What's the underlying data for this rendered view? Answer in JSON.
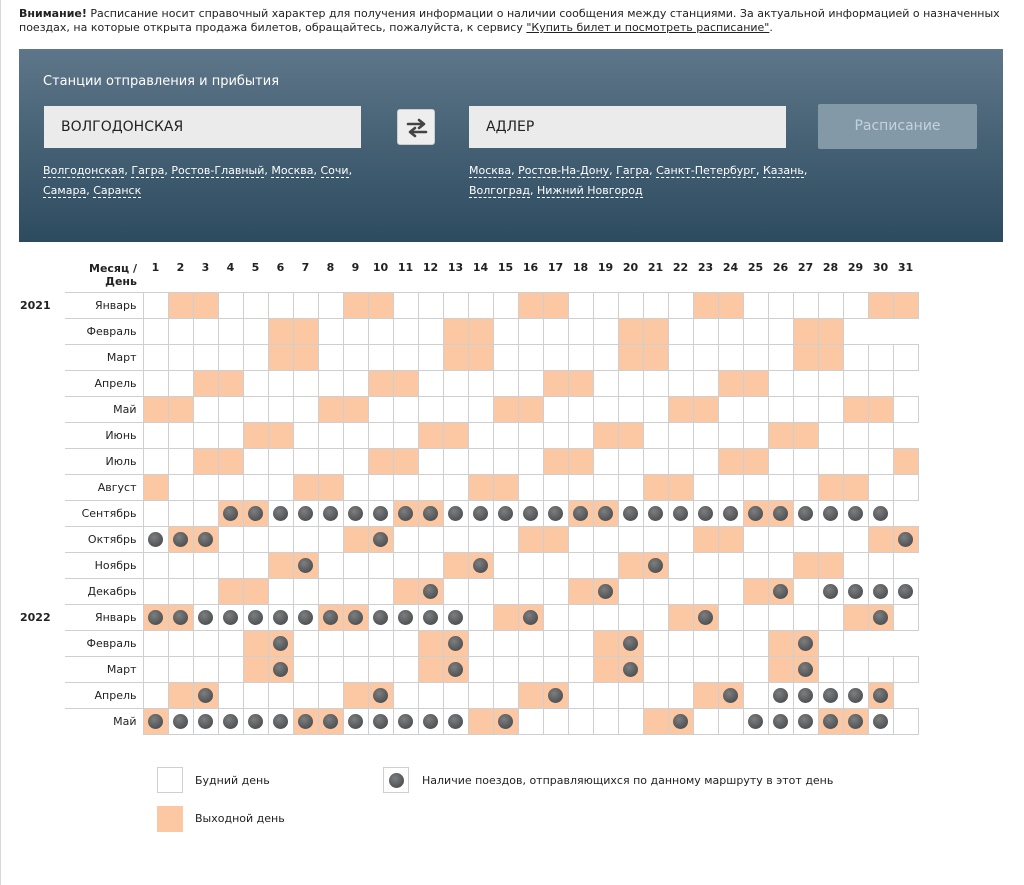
{
  "notice": {
    "bold": "Внимание!",
    "text": " Расписание носит справочный характер для получения информации о наличии сообщения между станциями. За актуальной информацией о назначенных поездах, на которые открыта продажа билетов, обращайтесь, пожалуйста, к сервису ",
    "link": "\"Купить билет и посмотреть расписание\"",
    "end": "."
  },
  "form": {
    "title": "Станции отправления и прибытия",
    "from_value": "ВОЛГОДОНСКАЯ",
    "to_value": "АДЛЕР",
    "swap_icon": "swap-arrows-icon",
    "submit_label": "Расписание",
    "from_suggestions": [
      "Волгодонская",
      "Гагра",
      "Ростов-Главный",
      "Москва",
      "Сочи",
      "Самара",
      "Саранск"
    ],
    "to_suggestions": [
      "Москва",
      "Ростов-На-Дону",
      "Гагра",
      "Санкт-Петербург",
      "Казань",
      "Волгоград",
      "Нижний Новгород"
    ]
  },
  "calendar": {
    "header_label": "Месяц / День",
    "months": [
      {
        "year": "2021",
        "name": "Январь",
        "days": 31,
        "weekend": [
          2,
          3,
          9,
          10,
          16,
          17,
          23,
          24,
          30,
          31
        ],
        "trains": []
      },
      {
        "year": "",
        "name": "Февраль",
        "days": 28,
        "weekend": [
          6,
          7,
          13,
          14,
          20,
          21,
          27,
          28
        ],
        "trains": []
      },
      {
        "year": "",
        "name": "Март",
        "days": 31,
        "weekend": [
          6,
          7,
          13,
          14,
          20,
          21,
          27,
          28
        ],
        "trains": []
      },
      {
        "year": "",
        "name": "Апрель",
        "days": 30,
        "weekend": [
          3,
          4,
          10,
          11,
          17,
          18,
          24,
          25
        ],
        "trains": []
      },
      {
        "year": "",
        "name": "Май",
        "days": 31,
        "weekend": [
          1,
          2,
          8,
          9,
          15,
          16,
          22,
          23,
          29,
          30
        ],
        "trains": []
      },
      {
        "year": "",
        "name": "Июнь",
        "days": 30,
        "weekend": [
          5,
          6,
          12,
          13,
          19,
          20,
          26,
          27
        ],
        "trains": []
      },
      {
        "year": "",
        "name": "Июль",
        "days": 31,
        "weekend": [
          3,
          4,
          10,
          11,
          17,
          18,
          24,
          25,
          31
        ],
        "trains": []
      },
      {
        "year": "",
        "name": "Август",
        "days": 31,
        "weekend": [
          1,
          7,
          8,
          14,
          15,
          21,
          22,
          28,
          29
        ],
        "trains": []
      },
      {
        "year": "",
        "name": "Сентябрь",
        "days": 30,
        "weekend": [
          4,
          5,
          11,
          12,
          18,
          19,
          25,
          26
        ],
        "trains": [
          4,
          5,
          6,
          7,
          8,
          9,
          10,
          11,
          12,
          13,
          14,
          15,
          16,
          17,
          18,
          19,
          20,
          21,
          22,
          23,
          24,
          25,
          26,
          27,
          28,
          29,
          30
        ]
      },
      {
        "year": "",
        "name": "Октябрь",
        "days": 31,
        "weekend": [
          2,
          3,
          9,
          10,
          16,
          17,
          23,
          24,
          30,
          31
        ],
        "trains": [
          1,
          2,
          3,
          10,
          31
        ]
      },
      {
        "year": "",
        "name": "Ноябрь",
        "days": 30,
        "weekend": [
          6,
          7,
          13,
          14,
          20,
          21,
          27,
          28
        ],
        "trains": [
          7,
          14,
          21
        ]
      },
      {
        "year": "",
        "name": "Декабрь",
        "days": 31,
        "weekend": [
          4,
          5,
          11,
          12,
          18,
          19,
          25,
          26
        ],
        "trains": [
          12,
          19,
          26,
          28,
          29,
          30,
          31
        ]
      },
      {
        "year": "2022",
        "name": "Январь",
        "days": 31,
        "weekend": [
          1,
          2,
          8,
          9,
          15,
          16,
          22,
          23,
          29,
          30
        ],
        "trains": [
          1,
          2,
          3,
          4,
          5,
          6,
          7,
          8,
          9,
          10,
          11,
          12,
          13,
          16,
          23,
          30
        ]
      },
      {
        "year": "",
        "name": "Февраль",
        "days": 28,
        "weekend": [
          5,
          6,
          12,
          13,
          19,
          20,
          26,
          27
        ],
        "trains": [
          6,
          13,
          20,
          27
        ]
      },
      {
        "year": "",
        "name": "Март",
        "days": 31,
        "weekend": [
          5,
          6,
          12,
          13,
          19,
          20,
          26,
          27
        ],
        "trains": [
          6,
          13,
          20,
          27
        ]
      },
      {
        "year": "",
        "name": "Апрель",
        "days": 30,
        "weekend": [
          2,
          3,
          9,
          10,
          16,
          17,
          23,
          24,
          30
        ],
        "trains": [
          3,
          10,
          17,
          24,
          26,
          27,
          28,
          29,
          30
        ]
      },
      {
        "year": "",
        "name": "Май",
        "days": 31,
        "weekend": [
          1,
          7,
          8,
          14,
          15,
          21,
          22,
          28,
          29
        ],
        "trains": [
          1,
          2,
          3,
          4,
          5,
          6,
          7,
          8,
          9,
          10,
          11,
          12,
          13,
          15,
          22,
          25,
          26,
          27,
          28,
          29,
          30
        ]
      }
    ]
  },
  "legend": {
    "weekday": "Будний день",
    "weekend": "Выходной день",
    "train": "Наличие поездов, отправляющихся по данному маршруту в этот день"
  },
  "colors": {
    "weekend": "#fcc8a3",
    "panel_top": "#5e7689",
    "panel_bottom": "#2d4b5f"
  }
}
